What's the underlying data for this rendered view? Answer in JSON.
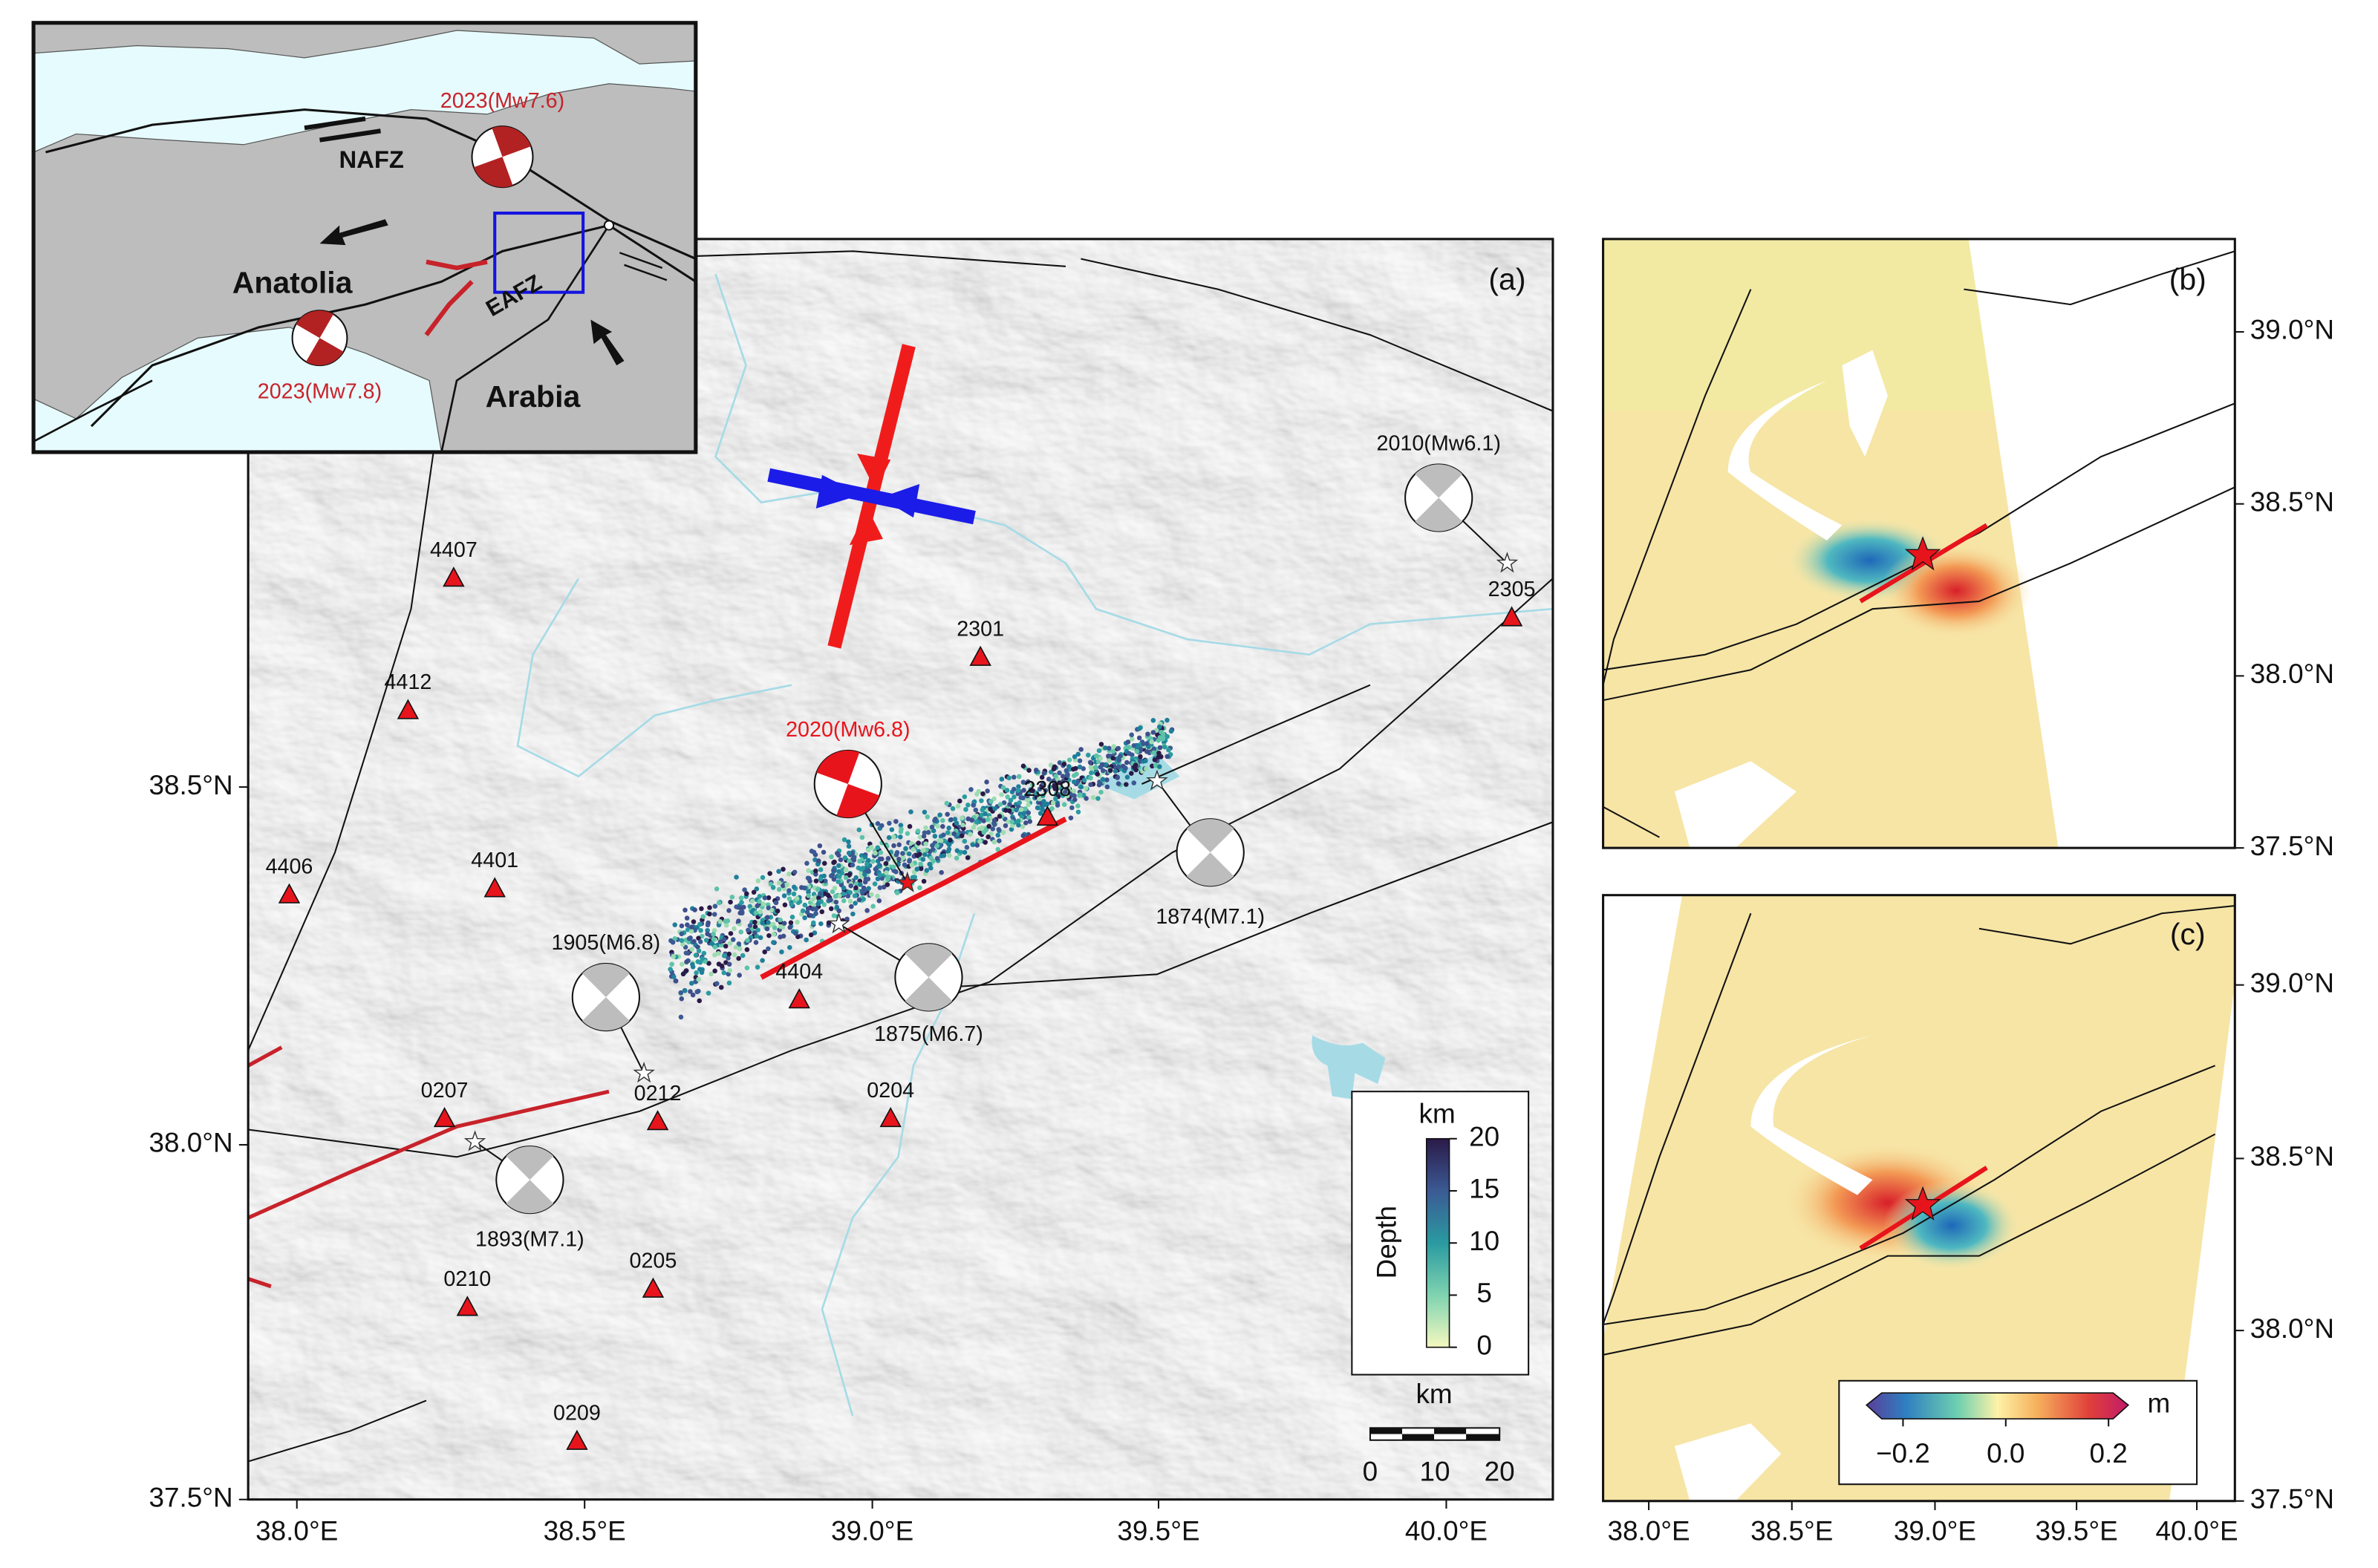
{
  "inset": {
    "nafz": "NAFZ",
    "eafz": "EAFZ",
    "anatolia": "Anatolia",
    "arabia": "Arabia",
    "events": [
      "2023(Mw7.6)",
      "2023(Mw7.8)"
    ]
  },
  "panel_a": {
    "label": "(a)",
    "mainshock": "2020(Mw6.8)",
    "stations": [
      "4407",
      "4412",
      "4406",
      "4401",
      "2301",
      "2305",
      "2308",
      "4404",
      "0207",
      "0212",
      "0204",
      "0210",
      "0205",
      "0209"
    ],
    "events": [
      "2010(Mw6.1)",
      "1874(M7.1)",
      "1875(M6.7)",
      "1905(M6.8)",
      "1893(M7.1)"
    ],
    "lon_ticks": [
      "38.0°E",
      "38.5°E",
      "39.0°E",
      "39.5°E",
      "40.0°E"
    ],
    "lat_ticks": [
      "37.5°N",
      "38.0°N",
      "38.5°N"
    ],
    "depth_colorbar": {
      "title": "Depth",
      "unit": "km",
      "ticks": [
        "0",
        "5",
        "10",
        "15",
        "20"
      ]
    },
    "scale_bar": {
      "unit": "km",
      "ticks": [
        "0",
        "10",
        "20"
      ]
    }
  },
  "panel_b": {
    "label": "(b)",
    "lat_ticks": [
      "37.5°N",
      "38.0°N",
      "38.5°N",
      "39.0°N"
    ]
  },
  "panel_c": {
    "label": "(c)",
    "lat_ticks": [
      "37.5°N",
      "38.0°N",
      "38.5°N",
      "39.0°N"
    ],
    "lon_ticks": [
      "38.0°E",
      "38.5°E",
      "39.0°E",
      "39.5°E",
      "40.0°E"
    ],
    "colorbar": {
      "unit": "m",
      "ticks": [
        "−0.2",
        "0.0",
        "0.2"
      ]
    }
  }
}
